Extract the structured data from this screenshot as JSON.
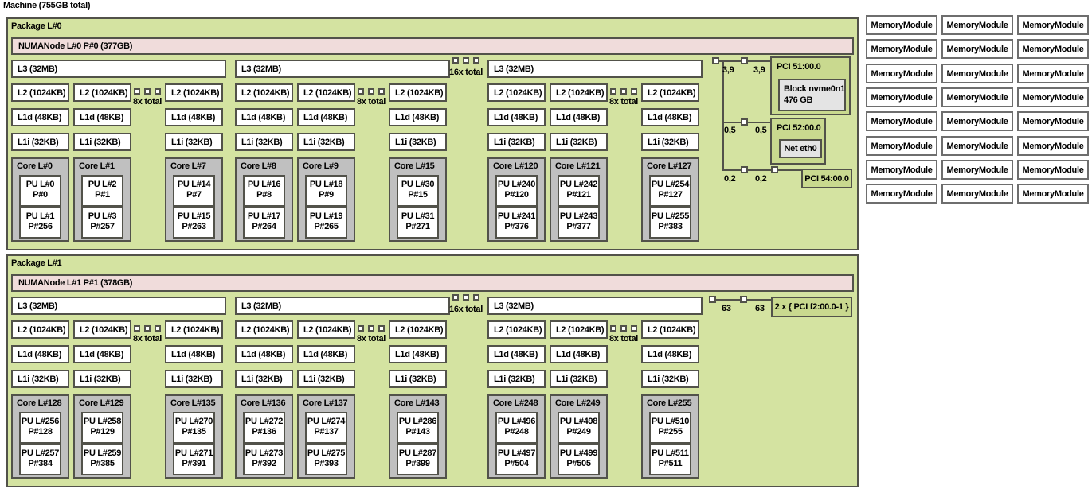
{
  "machine_label": "Machine (755GB total)",
  "colors": {
    "border": "#52524a",
    "package_fill": "#d4e3a1",
    "numa_fill": "#f0dcdb",
    "core_fill": "#c0c0c0",
    "pci_fill": "#c9d98f",
    "osdev_fill": "#e4e4e4"
  },
  "memory": {
    "module_label": "MemoryModule",
    "columns": 3,
    "rows": 8
  },
  "cache_labels": {
    "l3": "L3 (32MB)",
    "l2": "L2 (1024KB)",
    "l1d": "L1d (48KB)",
    "l1i": "L1i (32KB)"
  },
  "gap_labels": {
    "l3": "16x total",
    "l2": "8x total"
  },
  "packages": [
    {
      "label": "Package L#0",
      "numa_label": "NUMANode L#0 P#0 (377GB)",
      "groups": [
        {
          "columns": [
            {
              "core": "Core L#0",
              "pus": [
                [
                  "PU L#0",
                  "P#0"
                ],
                [
                  "PU L#1",
                  "P#256"
                ]
              ]
            },
            {
              "core": "Core L#1",
              "pus": [
                [
                  "PU L#2",
                  "P#1"
                ],
                [
                  "PU L#3",
                  "P#257"
                ]
              ]
            },
            {
              "core": "Core L#7",
              "pus": [
                [
                  "PU L#14",
                  "P#7"
                ],
                [
                  "PU L#15",
                  "P#263"
                ]
              ]
            }
          ]
        },
        {
          "columns": [
            {
              "core": "Core L#8",
              "pus": [
                [
                  "PU L#16",
                  "P#8"
                ],
                [
                  "PU L#17",
                  "P#264"
                ]
              ]
            },
            {
              "core": "Core L#9",
              "pus": [
                [
                  "PU L#18",
                  "P#9"
                ],
                [
                  "PU L#19",
                  "P#265"
                ]
              ]
            },
            {
              "core": "Core L#15",
              "pus": [
                [
                  "PU L#30",
                  "P#15"
                ],
                [
                  "PU L#31",
                  "P#271"
                ]
              ]
            }
          ]
        },
        {
          "columns": [
            {
              "core": "Core L#120",
              "pus": [
                [
                  "PU L#240",
                  "P#120"
                ],
                [
                  "PU L#241",
                  "P#376"
                ]
              ]
            },
            {
              "core": "Core L#121",
              "pus": [
                [
                  "PU L#242",
                  "P#121"
                ],
                [
                  "PU L#243",
                  "P#377"
                ]
              ]
            },
            {
              "core": "Core L#127",
              "pus": [
                [
                  "PU L#254",
                  "P#127"
                ],
                [
                  "PU L#255",
                  "P#383"
                ]
              ]
            }
          ]
        }
      ],
      "pci_rows": [
        {
          "speed_labels": [
            "3,9",
            "3,9"
          ],
          "title": "PCI 51:00.0",
          "child_lines": [
            "Block nvme0n1",
            "476 GB"
          ],
          "stacked": false
        },
        {
          "speed_labels": [
            "0,5",
            "0,5"
          ],
          "title": "PCI 52:00.0",
          "child_lines": [
            "Net eth0"
          ],
          "stacked": false
        },
        {
          "speed_labels": [
            "0,2",
            "0,2"
          ],
          "title": "PCI 54:00.0",
          "child_lines": [],
          "stacked": false
        }
      ]
    },
    {
      "label": "Package L#1",
      "numa_label": "NUMANode L#1 P#1 (378GB)",
      "groups": [
        {
          "columns": [
            {
              "core": "Core L#128",
              "pus": [
                [
                  "PU L#256",
                  "P#128"
                ],
                [
                  "PU L#257",
                  "P#384"
                ]
              ]
            },
            {
              "core": "Core L#129",
              "pus": [
                [
                  "PU L#258",
                  "P#129"
                ],
                [
                  "PU L#259",
                  "P#385"
                ]
              ]
            },
            {
              "core": "Core L#135",
              "pus": [
                [
                  "PU L#270",
                  "P#135"
                ],
                [
                  "PU L#271",
                  "P#391"
                ]
              ]
            }
          ]
        },
        {
          "columns": [
            {
              "core": "Core L#136",
              "pus": [
                [
                  "PU L#272",
                  "P#136"
                ],
                [
                  "PU L#273",
                  "P#392"
                ]
              ]
            },
            {
              "core": "Core L#137",
              "pus": [
                [
                  "PU L#274",
                  "P#137"
                ],
                [
                  "PU L#275",
                  "P#393"
                ]
              ]
            },
            {
              "core": "Core L#143",
              "pus": [
                [
                  "PU L#286",
                  "P#143"
                ],
                [
                  "PU L#287",
                  "P#399"
                ]
              ]
            }
          ]
        },
        {
          "columns": [
            {
              "core": "Core L#248",
              "pus": [
                [
                  "PU L#496",
                  "P#248"
                ],
                [
                  "PU L#497",
                  "P#504"
                ]
              ]
            },
            {
              "core": "Core L#249",
              "pus": [
                [
                  "PU L#498",
                  "P#249"
                ],
                [
                  "PU L#499",
                  "P#505"
                ]
              ]
            },
            {
              "core": "Core L#255",
              "pus": [
                [
                  "PU L#510",
                  "P#255"
                ],
                [
                  "PU L#511",
                  "P#511"
                ]
              ]
            }
          ]
        }
      ],
      "pci_rows": [
        {
          "speed_labels": [
            "63",
            "63"
          ],
          "title": "2 x { PCI f2:00.0-1 }",
          "child_lines": [],
          "stacked": true
        }
      ]
    }
  ]
}
